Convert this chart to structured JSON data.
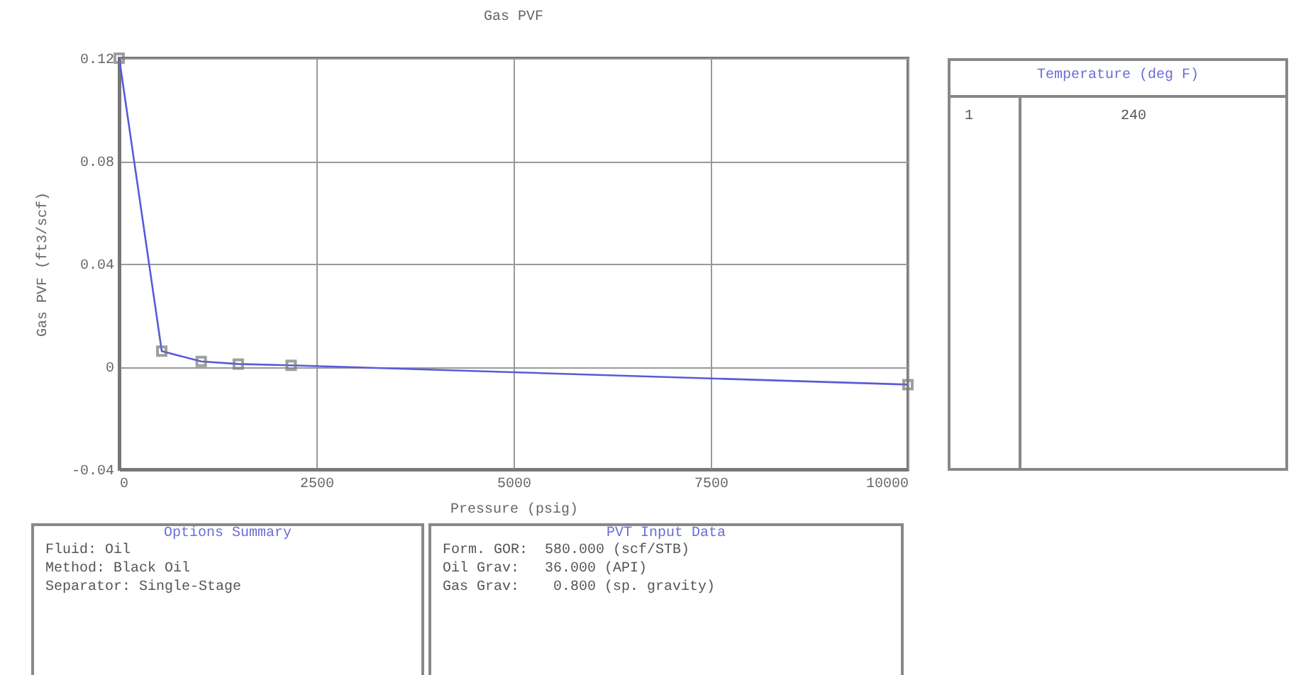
{
  "chart_data": {
    "type": "line",
    "title": "Gas PVF",
    "xlabel": "Pressure (psig)",
    "ylabel": "Gas PVF (ft3/scf)",
    "x": [
      0,
      540,
      1040,
      1510,
      2180,
      10000
    ],
    "series": [
      {
        "color": "#5a5ad8",
        "values": [
          0.12,
          0.006,
          0.002,
          0.001,
          0.0005,
          -0.007
        ]
      }
    ],
    "xlim": [
      0,
      10000
    ],
    "xticks": [
      0,
      2500,
      5000,
      7500,
      10000
    ],
    "ylim": [
      -0.04,
      0.12
    ],
    "yticks": [
      -0.04,
      0,
      0.04,
      0.08,
      0.12
    ],
    "grid": true,
    "marker": "square",
    "legend": false,
    "annotations": [
      "Temperature (deg F)",
      "1",
      "240",
      "Options Summary",
      "Fluid: Oil",
      "Method: Black Oil",
      "Separator: Single-Stage",
      "PVT Input Data",
      "Form. GOR:  580.000 (scf/STB)",
      "Oil Grav:   36.000 (API)",
      "Gas Grav:    0.800 (sp. gravity)"
    ]
  }
}
